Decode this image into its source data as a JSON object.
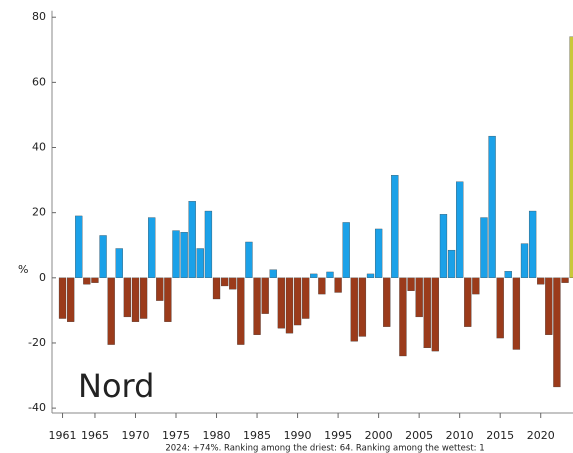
{
  "chart_data": {
    "type": "bar",
    "y_label": "%",
    "annotation": "Nord",
    "note": "2024: +74%. Ranking among the driest: 64. Ranking among the wettest: 1",
    "x": [
      1961,
      1962,
      1963,
      1964,
      1965,
      1966,
      1967,
      1968,
      1969,
      1970,
      1971,
      1972,
      1973,
      1974,
      1975,
      1976,
      1977,
      1978,
      1979,
      1980,
      1981,
      1982,
      1983,
      1984,
      1985,
      1986,
      1987,
      1988,
      1989,
      1990,
      1991,
      1992,
      1993,
      1994,
      1995,
      1996,
      1997,
      1998,
      1999,
      2000,
      2001,
      2002,
      2003,
      2004,
      2005,
      2006,
      2007,
      2008,
      2009,
      2010,
      2011,
      2012,
      2013,
      2014,
      2015,
      2016,
      2017,
      2018,
      2019,
      2020,
      2021,
      2022,
      2023,
      2024
    ],
    "values": [
      -12.5,
      -13.5,
      19,
      -2,
      -1.5,
      13,
      -20.5,
      9,
      -12,
      -13.5,
      -12.5,
      18.5,
      -7,
      -13.5,
      14.5,
      14,
      23.5,
      9,
      20.5,
      -6.5,
      -2.5,
      -3.5,
      -20.5,
      11,
      -17.5,
      -11,
      2.5,
      -15.5,
      -17,
      -14.5,
      -12.5,
      1.2,
      -5,
      1.8,
      -4.5,
      17,
      -19.5,
      -18,
      1.2,
      15,
      -15,
      31.5,
      -24,
      -4,
      -12,
      -21.5,
      -22.5,
      19.5,
      8.5,
      29.5,
      -15,
      -5,
      18.5,
      43.5,
      -18.5,
      2,
      -22,
      10.5,
      20.5,
      -2,
      -17.5,
      -33.5,
      -1.5,
      74
    ],
    "positive_color": "#1ba1e8",
    "negative_color": "#9b3b1b",
    "highlight_color": "#c9c83a",
    "highlight_x": 2024,
    "xlim": [
      1959.7,
      2024.6
    ],
    "ylim": [
      -41.5,
      82
    ],
    "xticks": [
      1961,
      1965,
      1970,
      1975,
      1980,
      1985,
      1990,
      1995,
      2000,
      2005,
      2010,
      2015,
      2020
    ],
    "yticks": [
      -40,
      -20,
      0,
      20,
      40,
      60,
      80
    ]
  }
}
